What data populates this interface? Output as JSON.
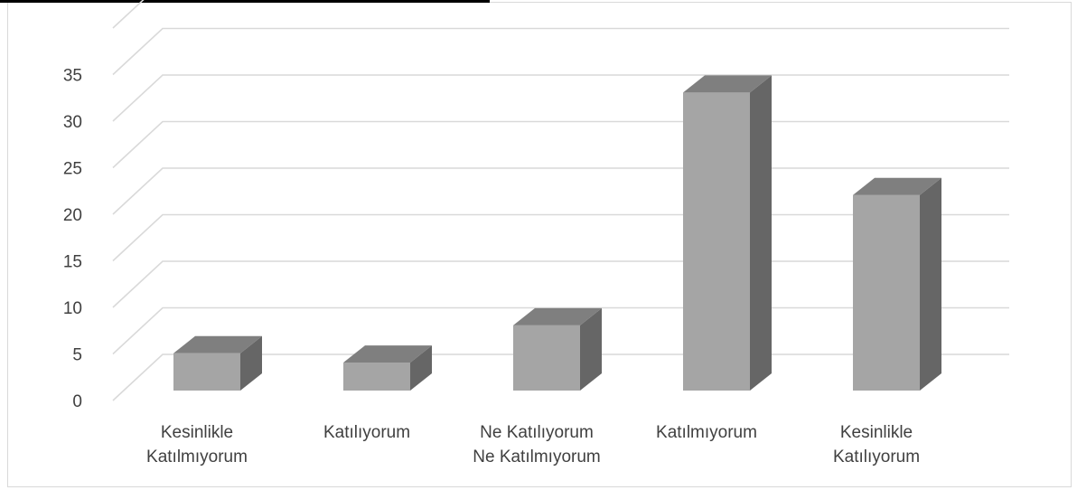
{
  "colors": {
    "bar_front": "#a5a5a5",
    "bar_top": "#7f7f7f",
    "bar_side": "#666666",
    "gridline": "#d9d9d9",
    "text": "#404040"
  },
  "chart_data": {
    "type": "bar",
    "subtype": "3d-clustered-column",
    "categories": [
      [
        "Kesinlikle",
        "Katılmıyorum"
      ],
      [
        "Katılıyorum"
      ],
      [
        "Ne Katılıyorum",
        "Ne Katılmıyorum"
      ],
      [
        "Katılmıyorum"
      ],
      [
        "Kesinlikle",
        "Katılıyorum"
      ]
    ],
    "values": [
      4,
      3,
      7,
      32,
      21
    ],
    "yticks": [
      "0",
      "5",
      "10",
      "15",
      "20",
      "25",
      "30",
      "35"
    ],
    "ylim": [
      0,
      35
    ],
    "grid": true,
    "legend": "none",
    "title": "",
    "xlabel": "",
    "ylabel": ""
  }
}
